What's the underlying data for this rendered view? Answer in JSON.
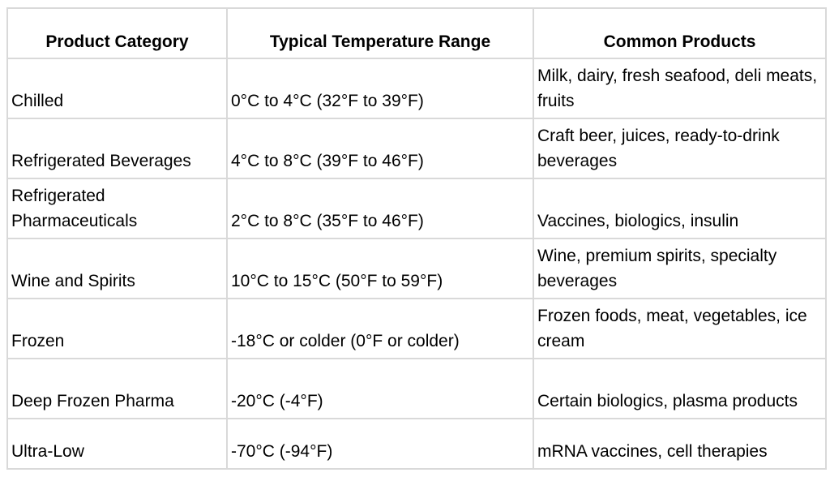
{
  "table": {
    "headers": [
      "Product Category",
      "Typical Temperature Range",
      "Common Products"
    ],
    "rows": [
      {
        "category": "Chilled",
        "range": "0°C to 4°C (32°F to 39°F)",
        "products": "Milk, dairy, fresh seafood, deli meats, fruits"
      },
      {
        "category": "Refrigerated Beverages",
        "range": "4°C to 8°C (39°F to 46°F)",
        "products": "Craft beer, juices, ready-to-drink beverages"
      },
      {
        "category": "Refrigerated Pharmaceuticals",
        "range": "2°C to 8°C (35°F to 46°F)",
        "products": "Vaccines, biologics, insulin"
      },
      {
        "category": "Wine and Spirits",
        "range": "10°C to 15°C (50°F to 59°F)",
        "products": "Wine, premium spirits, specialty beverages"
      },
      {
        "category": "Frozen",
        "range": "-18°C or colder (0°F or colder)",
        "products": "Frozen foods, meat, vegetables, ice cream"
      },
      {
        "category": "Deep Frozen Pharma",
        "range": "-20°C (-4°F)",
        "products": "Certain biologics, plasma products"
      },
      {
        "category": "Ultra-Low",
        "range": "-70°C (-94°F)",
        "products": "mRNA vaccines, cell therapies"
      }
    ]
  }
}
